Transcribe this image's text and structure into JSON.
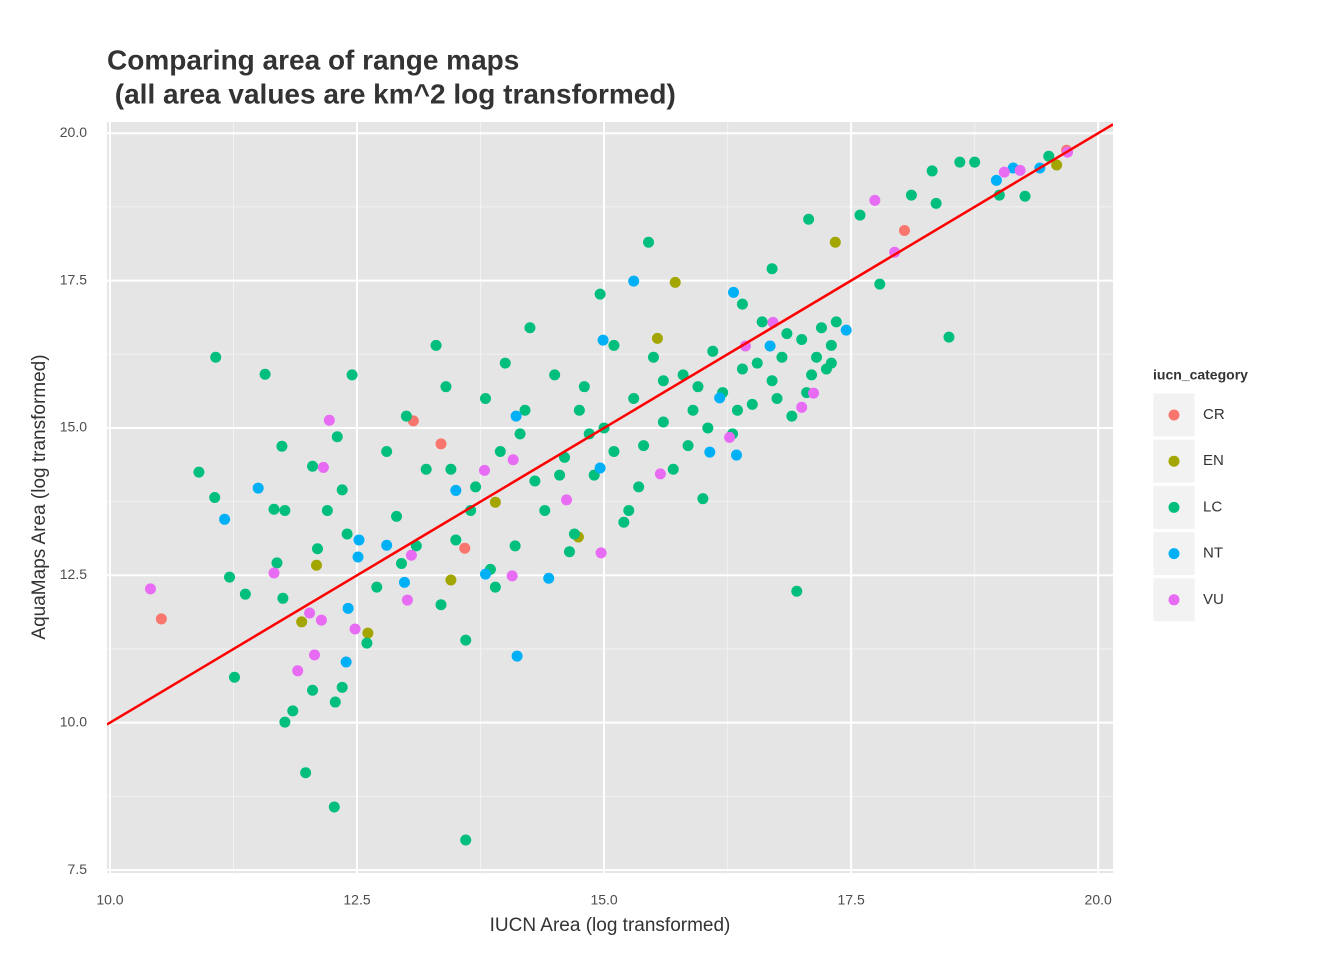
{
  "chart_data": {
    "type": "scatter",
    "title": [
      "Comparing area of range maps",
      " (all area values are km^2 log transformed)"
    ],
    "x_label": "IUCN Area (log transformed)",
    "y_label": "AquaMaps Area (log transformed)",
    "legend_title": "iucn_category",
    "legend": "right",
    "grid": true,
    "background": "#e5e5e5",
    "xlim": [
      9.97,
      20.15
    ],
    "ylim": [
      7.45,
      20.19
    ],
    "xticks": [
      {
        "value": 10,
        "label": "10.0"
      },
      12.5,
      {
        "value": 15,
        "label": "15.0"
      },
      17.5,
      {
        "value": 20,
        "label": "20.0"
      }
    ],
    "yticks": [
      7.5,
      {
        "value": 10,
        "label": "10.0"
      },
      12.5,
      {
        "value": 15,
        "label": "15.0"
      },
      17.5,
      {
        "value": 20,
        "label": "20.0"
      }
    ],
    "reference_line": {
      "slope": 1,
      "intercept": 0,
      "color": "#ff0000"
    },
    "series": [
      {
        "name": "CR",
        "color": "#F8766D",
        "x": [
          10.52,
          13.07,
          13.59,
          18.04,
          13.35,
          19.68
        ],
        "values": [
          11.76,
          15.12,
          12.96,
          18.35,
          14.73,
          19.71
        ]
      },
      {
        "name": "EN",
        "color": "#A3A500",
        "x": [
          17.34,
          15.72,
          19.58,
          11.94,
          14.74,
          12.09,
          15.54,
          12.61,
          13.9,
          13.45
        ],
        "values": [
          18.15,
          17.47,
          19.46,
          11.71,
          13.15,
          12.67,
          16.52,
          11.52,
          13.74,
          12.42
        ]
      },
      {
        "name": "LC",
        "color": "#00BF7D",
        "x": [
          11.07,
          10.9,
          11.06,
          11.21,
          11.26,
          11.37,
          11.57,
          11.74,
          11.66,
          11.77,
          11.69,
          11.75,
          11.77,
          11.85,
          11.98,
          12.27,
          13.6,
          16.95,
          18.49,
          17.79,
          17.07,
          15.45,
          14.96,
          18.6,
          18.75,
          18.32,
          18.11,
          18.36,
          19.26,
          19.0,
          19.5,
          17.59,
          12.05,
          12.3,
          12.35,
          12.45,
          12.2,
          12.1,
          12.4,
          12.28,
          12.35,
          12.05,
          12.6,
          12.7,
          12.8,
          12.9,
          13.0,
          13.2,
          13.3,
          13.4,
          13.5,
          13.6,
          13.7,
          13.8,
          13.9,
          14.0,
          14.1,
          14.2,
          14.25,
          14.3,
          14.4,
          14.5,
          14.6,
          14.7,
          14.8,
          14.9,
          15.0,
          15.1,
          15.2,
          15.3,
          15.4,
          15.5,
          15.6,
          15.7,
          15.8,
          15.9,
          16.0,
          16.1,
          16.2,
          16.3,
          16.4,
          16.5,
          16.6,
          16.7,
          16.8,
          16.9,
          17.0,
          17.1,
          17.2,
          17.25,
          17.3,
          17.35,
          16.7,
          16.4,
          15.6,
          15.1,
          14.85,
          14.55,
          13.95,
          13.45,
          13.1,
          12.95,
          16.05,
          16.55,
          17.05,
          15.85,
          15.35,
          14.75,
          14.15,
          13.65,
          16.85,
          17.15,
          15.95,
          16.35,
          15.25,
          14.65,
          13.85,
          13.35,
          16.75,
          17.3
        ],
        "values": [
          16.2,
          14.25,
          13.82,
          12.47,
          10.77,
          12.18,
          15.91,
          14.69,
          13.62,
          13.6,
          12.71,
          12.11,
          10.01,
          10.2,
          9.15,
          8.57,
          8.01,
          12.23,
          16.54,
          17.44,
          18.54,
          18.15,
          17.27,
          19.51,
          19.51,
          19.36,
          18.95,
          18.81,
          18.93,
          18.95,
          19.61,
          18.61,
          14.35,
          14.85,
          13.95,
          15.9,
          13.6,
          12.95,
          13.2,
          10.35,
          10.6,
          10.55,
          11.35,
          12.3,
          14.6,
          13.5,
          15.2,
          14.3,
          16.4,
          15.7,
          13.1,
          11.4,
          14.0,
          15.5,
          12.3,
          16.1,
          13.0,
          15.3,
          16.7,
          14.1,
          13.6,
          15.9,
          14.5,
          13.2,
          15.7,
          14.2,
          15.0,
          16.4,
          13.4,
          15.5,
          14.7,
          16.2,
          15.1,
          14.3,
          15.9,
          15.3,
          13.8,
          16.3,
          15.6,
          14.9,
          16.0,
          15.4,
          16.8,
          15.8,
          16.2,
          15.2,
          16.5,
          15.9,
          16.7,
          16.0,
          16.4,
          16.8,
          17.7,
          17.1,
          15.8,
          14.6,
          14.9,
          14.2,
          14.6,
          14.3,
          13.0,
          12.7,
          15.0,
          16.1,
          15.6,
          14.7,
          14.0,
          15.3,
          14.9,
          13.6,
          16.6,
          16.2,
          15.7,
          15.3,
          13.6,
          12.9,
          12.6,
          12.0,
          15.5,
          16.1
        ]
      },
      {
        "name": "NT",
        "color": "#00B0F6",
        "x": [
          15.3,
          16.31,
          19.41,
          19.14,
          18.97,
          17.45,
          11.5,
          11.16,
          12.39,
          14.12,
          16.34,
          14.44,
          12.98,
          12.51,
          12.41,
          12.52,
          13.8,
          16.07,
          14.99,
          14.11,
          13.5,
          16.17,
          14.96,
          16.68,
          12.8
        ],
        "values": [
          17.49,
          17.3,
          19.41,
          19.41,
          19.2,
          16.66,
          13.98,
          13.45,
          11.03,
          11.13,
          14.54,
          12.45,
          12.38,
          12.81,
          11.94,
          13.1,
          12.52,
          14.59,
          16.49,
          15.2,
          13.94,
          15.51,
          14.32,
          16.39,
          13.01
        ]
      },
      {
        "name": "VU",
        "color": "#E76BF3",
        "x": [
          10.41,
          19.69,
          17.74,
          17.94,
          19.05,
          19.21,
          12.22,
          12.16,
          11.66,
          11.9,
          12.07,
          12.02,
          12.14,
          12.48,
          13.01,
          13.05,
          14.07,
          13.79,
          14.97,
          15.57,
          14.62,
          16.27,
          16.71,
          17.0,
          17.12,
          14.08,
          16.43
        ],
        "values": [
          12.27,
          19.68,
          18.86,
          17.98,
          19.34,
          19.37,
          15.13,
          14.33,
          12.54,
          10.88,
          11.15,
          11.86,
          11.74,
          11.59,
          12.08,
          12.84,
          12.49,
          14.28,
          12.88,
          14.22,
          13.78,
          14.84,
          16.79,
          15.35,
          15.59,
          14.46,
          16.39
        ]
      }
    ]
  }
}
